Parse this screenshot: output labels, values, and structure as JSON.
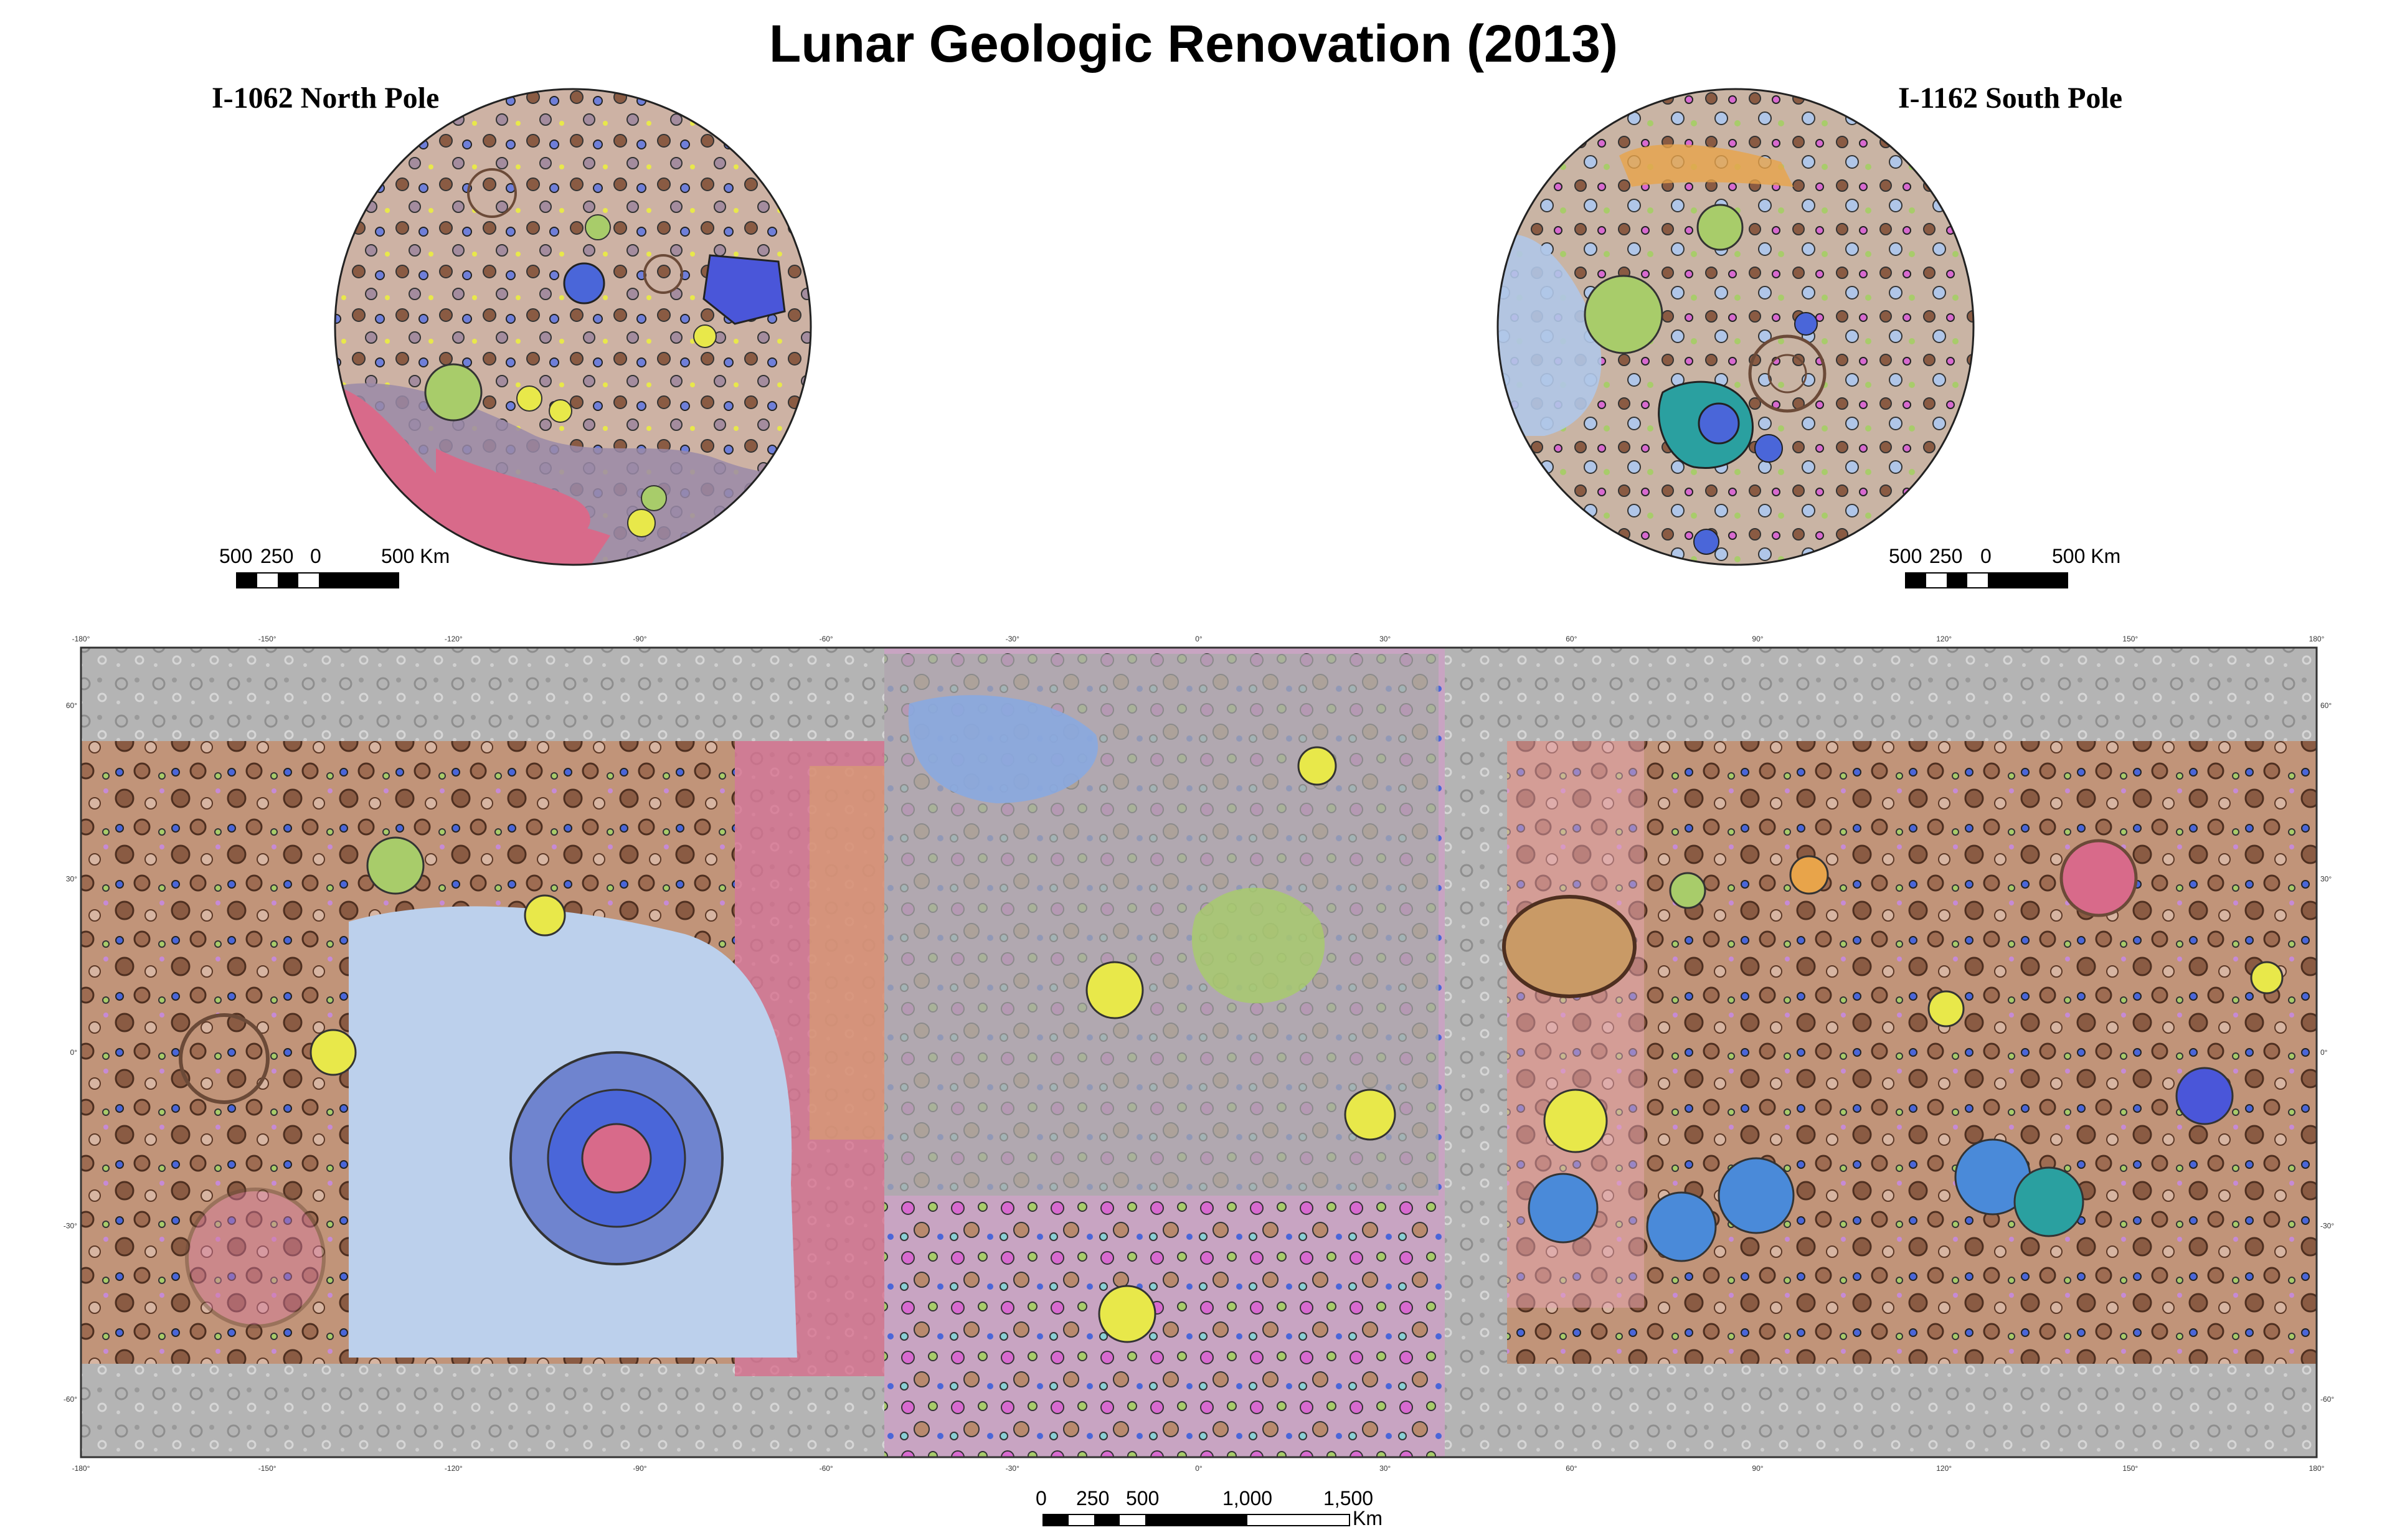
{
  "title": "Lunar Geologic Renovation (2013)",
  "north_pole": {
    "label": "I-1062 North Pole",
    "scale": {
      "labels": [
        "500",
        "250",
        "0",
        "500 Km"
      ]
    }
  },
  "south_pole": {
    "label": "I-1162 South Pole",
    "scale": {
      "labels": [
        "500",
        "250",
        "0",
        "500 Km"
      ]
    }
  },
  "main_map": {
    "longitude_ticks": [
      "-180°",
      "-150°",
      "-120°",
      "-90°",
      "-60°",
      "-30°",
      "0°",
      "30°",
      "60°",
      "90°",
      "120°",
      "150°",
      "180°"
    ],
    "latitude_ticks": [
      "60°",
      "30°",
      "0°",
      "-30°",
      "-60°"
    ],
    "scale": {
      "labels": [
        "0",
        "250",
        "500",
        "1,000",
        "1,500"
      ],
      "unit": "Km"
    }
  },
  "colors": {
    "highland_brown": "#b98a6e",
    "mare_gray": "#a9a9a9",
    "crater_yellow": "#e8e84a",
    "crater_blue": "#4a66d9",
    "orientale_blue": "#bcd0ec",
    "pink_unit": "#d86a8a",
    "green_unit": "#a8cc6a",
    "purple_unit": "#c68ad6",
    "terrain_gray": "#b4b4b4"
  }
}
